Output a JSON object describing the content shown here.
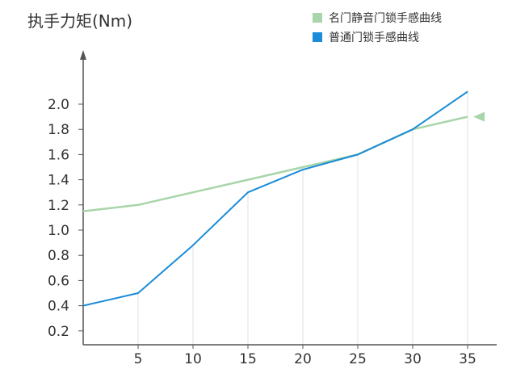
{
  "chart_data": {
    "type": "line",
    "ylabel": "执手力矩(Nm)",
    "xlabel": "",
    "x": [
      0,
      5,
      10,
      15,
      20,
      25,
      30,
      35
    ],
    "x_tick_labels": [
      "5",
      "10",
      "15",
      "20",
      "25",
      "30",
      "35"
    ],
    "y_tick_labels": [
      "0.2",
      "0.4",
      "0.6",
      "0.8",
      "1.0",
      "1.2",
      "1.4",
      "1.6",
      "1.8",
      "2.0"
    ],
    "xlim": [
      0,
      37
    ],
    "ylim": [
      0.1,
      2.2
    ],
    "grid": "vertical",
    "legend_position": "top-right",
    "series": [
      {
        "name": "名门静音门锁手感曲线",
        "color": "#a8d5a9",
        "values": [
          1.15,
          1.2,
          1.3,
          1.4,
          1.5,
          1.6,
          1.8,
          1.9
        ]
      },
      {
        "name": "普通门锁手感曲线",
        "color": "#1a8cd8",
        "values": [
          0.4,
          0.5,
          0.88,
          1.3,
          1.48,
          1.6,
          1.8,
          2.1
        ]
      }
    ]
  }
}
